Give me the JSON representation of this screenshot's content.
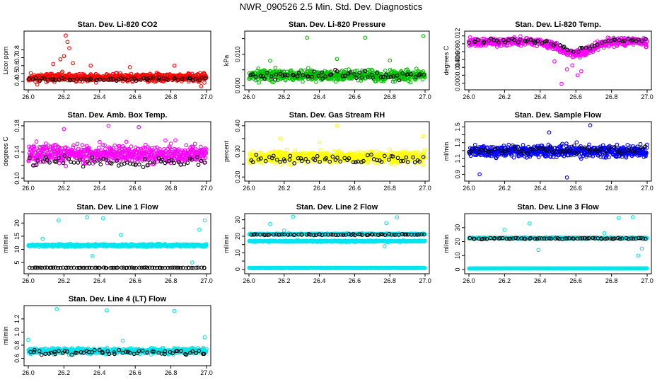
{
  "figure": {
    "title": "NWR_090526  2.5 Min. Std. Dev. Diagnostics"
  },
  "colors": {
    "red": "#ff0000",
    "green": "#00c000",
    "magenta": "#ff00ff",
    "yellow": "#ffff00",
    "blue": "#0000ff",
    "cyan": "#00e5ee",
    "black": "#000000"
  },
  "chart_data": [
    {
      "type": "scatter",
      "title": "Stan. Dev. Li-820 CO2",
      "xlabel": "",
      "ylabel": "Licor ppm",
      "xlim": [
        26.0,
        27.0
      ],
      "ylim": [
        0.33,
        1.0
      ],
      "xticks": [
        "26.0",
        "26.2",
        "26.4",
        "26.6",
        "26.8",
        "27.0"
      ],
      "yticks": [
        0.4,
        0.5,
        0.6,
        0.7,
        0.8
      ],
      "ytick_labels": [
        "0.4",
        "0.5",
        "0.6",
        "0.7",
        "0.8"
      ],
      "series": [
        {
          "name": "samples",
          "color": "red",
          "pattern": {
            "type": "band",
            "n": 600,
            "center": 0.45,
            "spread": 0.06
          }
        },
        {
          "name": "reference",
          "color": "black",
          "pattern": {
            "type": "band",
            "n": 60,
            "center": 0.43,
            "spread": 0.03
          }
        }
      ],
      "outliers": [
        [
          26.21,
          0.98
        ],
        [
          26.22,
          0.9
        ],
        [
          26.23,
          0.82
        ],
        [
          26.2,
          0.72
        ],
        [
          26.18,
          0.68
        ],
        [
          26.25,
          0.63
        ],
        [
          26.14,
          0.62
        ],
        [
          26.35,
          0.6
        ],
        [
          26.57,
          0.58
        ],
        [
          26.82,
          0.6
        ],
        [
          26.97,
          0.34
        ],
        [
          26.05,
          0.36
        ]
      ]
    },
    {
      "type": "scatter",
      "title": "Stan. Dev. Li-820 Pressure",
      "xlabel": "",
      "ylabel": "kPa",
      "xlim": [
        26.0,
        27.0
      ],
      "ylim": [
        -0.0005,
        0.0165
      ],
      "xticks": [
        "26.0",
        "26.2",
        "26.4",
        "26.6",
        "26.8",
        "27.0"
      ],
      "yticks": [
        0.0,
        0.005,
        0.01,
        0.015
      ],
      "ytick_labels": [
        "0.000",
        "",
        "0.010",
        ""
      ],
      "series": [
        {
          "name": "samples",
          "color": "green",
          "pattern": {
            "type": "band",
            "n": 600,
            "center": 0.0032,
            "spread": 0.0022
          }
        },
        {
          "name": "reference",
          "color": "black",
          "pattern": {
            "type": "band",
            "n": 60,
            "center": 0.0033,
            "spread": 0.0014
          }
        }
      ],
      "outliers": [
        [
          26.33,
          0.0153
        ],
        [
          26.66,
          0.0153
        ],
        [
          26.99,
          0.0158
        ],
        [
          26.5,
          0.0085
        ],
        [
          26.8,
          0.008
        ],
        [
          26.12,
          0.0079
        ]
      ]
    },
    {
      "type": "scatter",
      "title": "Stan. Dev. Li-820 Temp.",
      "xlabel": "",
      "ylabel": "degrees C",
      "xlim": [
        26.0,
        27.0
      ],
      "ylim": [
        -0.001,
        0.0125
      ],
      "xticks": [
        "26.0",
        "26.2",
        "26.4",
        "26.6",
        "26.8",
        "27.0"
      ],
      "yticks": [
        0.0,
        0.002,
        0.004,
        0.006,
        0.008,
        0.01,
        0.012
      ],
      "ytick_labels": [
        "0.000",
        "",
        "0.004",
        "0.006",
        "0.008",
        "",
        "0.012"
      ],
      "series": [
        {
          "name": "samples",
          "color": "magenta",
          "pattern": {
            "type": "dip",
            "n": 600,
            "center": 0.0105,
            "spread": 0.0012,
            "dip_at": 26.6,
            "dip_depth": 0.003
          }
        },
        {
          "name": "reference",
          "color": "black",
          "pattern": {
            "type": "dip",
            "n": 60,
            "center": 0.0108,
            "spread": 0.0007,
            "dip_at": 26.6,
            "dip_depth": 0.0025
          }
        }
      ],
      "outliers": [
        [
          26.52,
          -0.0002
        ],
        [
          26.61,
          0.002
        ],
        [
          26.63,
          0.003
        ],
        [
          26.55,
          0.0035
        ],
        [
          26.48,
          0.0055
        ],
        [
          26.58,
          0.0045
        ]
      ]
    },
    {
      "type": "scatter",
      "title": "Stan. Dev. Amb. Box Temp.",
      "xlabel": "",
      "ylabel": "degrees C",
      "xlim": [
        26.0,
        27.0
      ],
      "ylim": [
        0.1,
        0.182
      ],
      "xticks": [
        "26.0",
        "26.2",
        "26.4",
        "26.6",
        "26.8",
        "27.0"
      ],
      "yticks": [
        0.1,
        0.12,
        0.14,
        0.16,
        0.18
      ],
      "ytick_labels": [
        "0.10",
        "",
        "0.14",
        "",
        "0.18"
      ],
      "series": [
        {
          "name": "samples",
          "color": "magenta",
          "pattern": {
            "type": "band",
            "n": 650,
            "center": 0.137,
            "spread": 0.017
          }
        },
        {
          "name": "reference",
          "color": "black",
          "pattern": {
            "type": "band",
            "n": 60,
            "center": 0.126,
            "spread": 0.009
          }
        }
      ],
      "outliers": [
        [
          26.45,
          0.18
        ],
        [
          26.62,
          0.178
        ],
        [
          26.2,
          0.175
        ]
      ]
    },
    {
      "type": "scatter",
      "title": "Stan. Dev. Gas Stream RH",
      "xlabel": "",
      "ylabel": "percent",
      "xlim": [
        26.0,
        27.0
      ],
      "ylim": [
        0.195,
        0.405
      ],
      "xticks": [
        "26.0",
        "26.2",
        "26.4",
        "26.6",
        "26.8",
        "27.0"
      ],
      "yticks": [
        0.2,
        0.25,
        0.3,
        0.35,
        0.4
      ],
      "ytick_labels": [
        "0.20",
        "",
        "0.30",
        "",
        "0.40"
      ],
      "series": [
        {
          "name": "samples",
          "color": "yellow",
          "pattern": {
            "type": "band",
            "n": 650,
            "center": 0.277,
            "spread": 0.027
          }
        },
        {
          "name": "reference",
          "color": "black",
          "pattern": {
            "type": "band",
            "n": 60,
            "center": 0.27,
            "spread": 0.025
          }
        }
      ],
      "outliers": [
        [
          26.5,
          0.4
        ],
        [
          26.99,
          0.36
        ],
        [
          26.18,
          0.35
        ],
        [
          26.4,
          0.335
        ]
      ]
    },
    {
      "type": "scatter",
      "title": "Stan. Dev. Sample Flow",
      "xlabel": "",
      "ylabel": "ml/min",
      "xlim": [
        26.0,
        27.0
      ],
      "ylim": [
        0.85,
        1.53
      ],
      "xticks": [
        "26.0",
        "26.2",
        "26.4",
        "26.6",
        "26.8",
        "27.0"
      ],
      "yticks": [
        0.9,
        1.0,
        1.1,
        1.2,
        1.3,
        1.4,
        1.5
      ],
      "ytick_labels": [
        "0.9",
        "",
        "1.1",
        "",
        "1.3",
        "",
        "1.5"
      ],
      "series": [
        {
          "name": "samples",
          "color": "blue",
          "pattern": {
            "type": "band",
            "n": 650,
            "center": 1.19,
            "spread": 0.09
          }
        },
        {
          "name": "reference",
          "color": "black",
          "pattern": {
            "type": "band",
            "n": 60,
            "center": 1.2,
            "spread": 0.06
          }
        }
      ],
      "outliers": [
        [
          26.68,
          1.52
        ],
        [
          26.55,
          0.86
        ],
        [
          26.06,
          0.9
        ],
        [
          26.45,
          1.43
        ]
      ]
    },
    {
      "type": "scatter",
      "title": "Stan. Dev. Line 1 Flow",
      "xlabel": "",
      "ylabel": "ml/min",
      "xlim": [
        26.0,
        27.0
      ],
      "ylim": [
        1.8,
        22.5
      ],
      "xticks": [
        "26.0",
        "26.2",
        "26.4",
        "26.6",
        "26.8",
        "27.0"
      ],
      "yticks": [
        5,
        10,
        15,
        20
      ],
      "ytick_labels": [
        "5",
        "10",
        "15",
        "20"
      ],
      "series": [
        {
          "name": "samples",
          "color": "cyan",
          "pattern": {
            "type": "band",
            "n": 650,
            "center": 11.5,
            "spread": 0.55
          }
        },
        {
          "name": "reference",
          "color": "black",
          "pattern": {
            "type": "band",
            "n": 80,
            "center": 3.0,
            "spread": 0.12
          }
        }
      ],
      "outliers": [
        [
          26.17,
          21.0
        ],
        [
          26.33,
          22.2
        ],
        [
          26.42,
          21.8
        ],
        [
          26.99,
          21.0
        ],
        [
          26.96,
          17.5
        ],
        [
          26.52,
          15.5
        ],
        [
          26.36,
          7.5
        ],
        [
          26.92,
          5.0
        ],
        [
          26.08,
          14.0
        ]
      ]
    },
    {
      "type": "scatter",
      "title": "Stan. Dev. Line 2 Flow",
      "xlabel": "",
      "ylabel": "ml/min",
      "xlim": [
        26.0,
        27.0
      ],
      "ylim": [
        -1,
        32
      ],
      "xticks": [
        "26.0",
        "26.2",
        "26.4",
        "26.6",
        "26.8",
        "27.0"
      ],
      "yticks": [
        0,
        5,
        10,
        15,
        20,
        25,
        30
      ],
      "ytick_labels": [
        "0",
        "",
        "10",
        "",
        "20",
        "",
        "30"
      ],
      "series": [
        {
          "name": "upper",
          "color": "cyan",
          "pattern": {
            "type": "band",
            "n": 450,
            "center": 21.3,
            "spread": 0.45
          }
        },
        {
          "name": "middle",
          "color": "cyan",
          "pattern": {
            "type": "band",
            "n": 450,
            "center": 17.0,
            "spread": 0.5
          }
        },
        {
          "name": "zero",
          "color": "cyan",
          "pattern": {
            "type": "band",
            "n": 450,
            "center": 0.8,
            "spread": 0.15
          }
        },
        {
          "name": "reference",
          "color": "black",
          "pattern": {
            "type": "band",
            "n": 70,
            "center": 21.0,
            "spread": 0.4
          }
        }
      ],
      "outliers": [
        [
          26.12,
          27.5
        ],
        [
          26.25,
          31.8
        ],
        [
          26.78,
          28.0
        ],
        [
          26.84,
          31.5
        ],
        [
          26.77,
          14.0
        ],
        [
          26.2,
          23.5
        ]
      ]
    },
    {
      "type": "scatter",
      "title": "Stan. Dev. Line 3 Flow",
      "xlabel": "",
      "ylabel": "ml/min",
      "xlim": [
        26.0,
        27.0
      ],
      "ylim": [
        -1,
        38
      ],
      "xticks": [
        "26.0",
        "26.2",
        "26.4",
        "26.6",
        "26.8",
        "27.0"
      ],
      "yticks": [
        0,
        10,
        20,
        30
      ],
      "ytick_labels": [
        "0",
        "10",
        "20",
        "30"
      ],
      "series": [
        {
          "name": "samples",
          "color": "cyan",
          "pattern": {
            "type": "band",
            "n": 650,
            "center": 22.5,
            "spread": 0.6
          }
        },
        {
          "name": "zero",
          "color": "cyan",
          "pattern": {
            "type": "band",
            "n": 450,
            "center": 0.8,
            "spread": 0.15
          }
        },
        {
          "name": "reference",
          "color": "black",
          "pattern": {
            "type": "band",
            "n": 70,
            "center": 22.2,
            "spread": 0.5
          }
        }
      ],
      "outliers": [
        [
          26.2,
          28.5
        ],
        [
          26.34,
          33.0
        ],
        [
          26.92,
          37.5
        ],
        [
          26.84,
          37.0
        ],
        [
          26.95,
          10.0
        ],
        [
          26.97,
          15.0
        ],
        [
          26.39,
          14.0
        ],
        [
          26.76,
          26.0
        ]
      ]
    },
    {
      "type": "scatter",
      "title": "Stan. Dev. Line 4 (LT) Flow",
      "xlabel": "",
      "ylabel": "ml/min",
      "xlim": [
        26.0,
        27.0
      ],
      "ylim": [
        0.53,
        1.36
      ],
      "xticks": [
        "26.0",
        "26.2",
        "26.4",
        "26.6",
        "26.8",
        "27.0"
      ],
      "yticks": [
        0.6,
        0.8,
        1.0,
        1.2
      ],
      "ytick_labels": [
        "0.6",
        "0.8",
        "1.0",
        "1.2"
      ],
      "series": [
        {
          "name": "samples",
          "color": "cyan",
          "pattern": {
            "type": "band",
            "n": 650,
            "center": 0.71,
            "spread": 0.05
          }
        },
        {
          "name": "reference",
          "color": "black",
          "pattern": {
            "type": "band",
            "n": 60,
            "center": 0.69,
            "spread": 0.05
          }
        }
      ],
      "outliers": [
        [
          26.16,
          1.35
        ],
        [
          26.44,
          1.33
        ],
        [
          26.82,
          1.32
        ],
        [
          26.99,
          0.92
        ],
        [
          26.0,
          0.88
        ],
        [
          26.53,
          0.87
        ]
      ]
    }
  ]
}
